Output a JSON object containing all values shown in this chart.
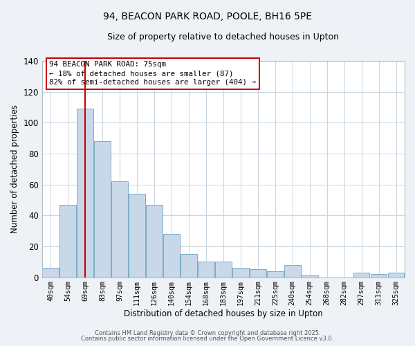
{
  "title_line1": "94, BEACON PARK ROAD, POOLE, BH16 5PE",
  "title_line2": "Size of property relative to detached houses in Upton",
  "xlabel": "Distribution of detached houses by size in Upton",
  "ylabel": "Number of detached properties",
  "bar_labels": [
    "40sqm",
    "54sqm",
    "69sqm",
    "83sqm",
    "97sqm",
    "111sqm",
    "126sqm",
    "140sqm",
    "154sqm",
    "168sqm",
    "183sqm",
    "197sqm",
    "211sqm",
    "225sqm",
    "240sqm",
    "254sqm",
    "268sqm",
    "282sqm",
    "297sqm",
    "311sqm",
    "325sqm"
  ],
  "bar_values": [
    6,
    47,
    109,
    88,
    62,
    54,
    47,
    28,
    15,
    10,
    10,
    6,
    5,
    4,
    8,
    1,
    0,
    0,
    3,
    2,
    3
  ],
  "bar_color": "#c8d8e8",
  "bar_edge_color": "#7aaac8",
  "ylim": [
    0,
    140
  ],
  "yticks": [
    0,
    20,
    40,
    60,
    80,
    100,
    120,
    140
  ],
  "vline_index": 2,
  "vline_color": "#cc0000",
  "annotation_title": "94 BEACON PARK ROAD: 75sqm",
  "annotation_line1": "← 18% of detached houses are smaller (87)",
  "annotation_line2": "82% of semi-detached houses are larger (404) →",
  "annotation_box_color": "#ffffff",
  "annotation_box_edge": "#cc0000",
  "footnote1": "Contains HM Land Registry data © Crown copyright and database right 2025.",
  "footnote2": "Contains public sector information licensed under the Open Government Licence v3.0.",
  "bg_color": "#eef2f7",
  "plot_bg_color": "#ffffff",
  "grid_color": "#c8d4e0"
}
